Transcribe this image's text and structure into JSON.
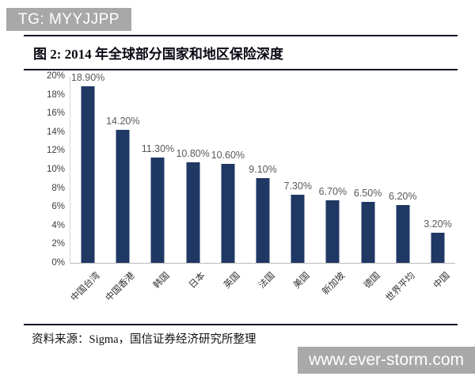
{
  "badge": {
    "text": "TG: MYYJJPP"
  },
  "figure": {
    "title": "图 2: 2014 年全球部分国家和地区保险深度"
  },
  "chart_data": {
    "type": "bar",
    "title": "2014 年全球部分国家和地区保险深度",
    "categories": [
      "中国台湾",
      "中国香港",
      "韩国",
      "日本",
      "英国",
      "法国",
      "美国",
      "新加坡",
      "德国",
      "世界平均",
      "中国"
    ],
    "values": [
      18.9,
      14.2,
      11.3,
      10.8,
      10.6,
      9.1,
      7.3,
      6.7,
      6.5,
      6.2,
      3.2
    ],
    "value_labels": [
      "18.90%",
      "14.20%",
      "11.30%",
      "10.80%",
      "10.60%",
      "9.10%",
      "7.30%",
      "6.70%",
      "6.50%",
      "6.20%",
      "3.20%"
    ],
    "y_ticks": [
      "20%",
      "18%",
      "16%",
      "14%",
      "12%",
      "10%",
      "8%",
      "6%",
      "4%",
      "2%",
      "0%"
    ],
    "xlabel": "",
    "ylabel": "",
    "ylim": [
      0,
      20
    ],
    "grid": false,
    "legend": false,
    "bar_color": "#1f3864",
    "label_color": "#595959",
    "axis_color": "#b9b9b9"
  },
  "footer": {
    "source": "资料来源：Sigma，国信证券经济研究所整理"
  },
  "watermark": {
    "text": "www.ever-storm.com"
  }
}
